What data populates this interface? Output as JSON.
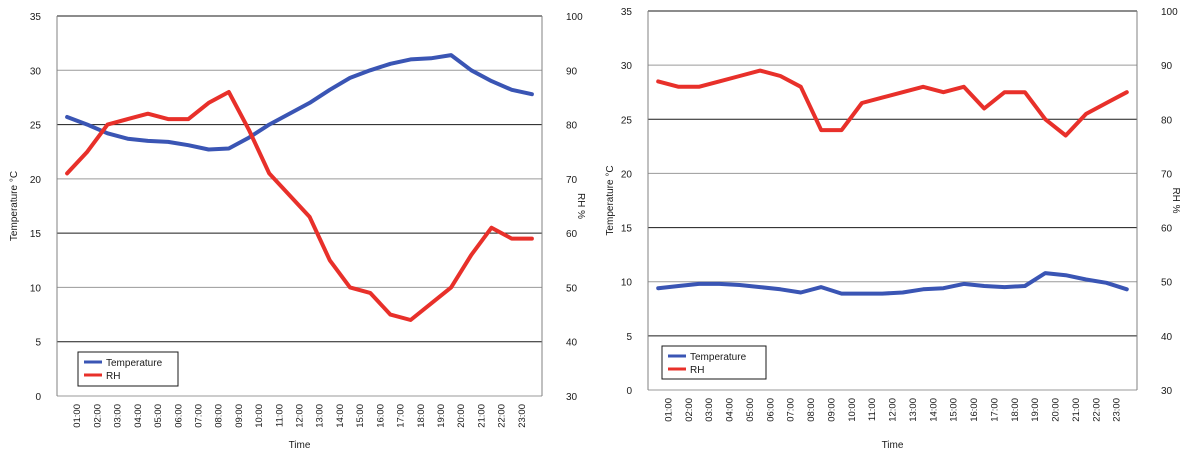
{
  "chart_data": [
    {
      "type": "line",
      "xlabel": "Time",
      "ylabel_left": "Temperature °C",
      "ylabel_right": "RH %",
      "categories": [
        "01:00",
        "02:00",
        "03:00",
        "04:00",
        "05:00",
        "06:00",
        "07:00",
        "08:00",
        "09:00",
        "10:00",
        "11:00",
        "12:00",
        "13:00",
        "14:00",
        "15:00",
        "16:00",
        "17:00",
        "18:00",
        "19:00",
        "20:00",
        "21:00",
        "22:00",
        "23:00"
      ],
      "ylim_left": [
        0,
        35
      ],
      "yticks_left": [
        "0",
        "5",
        "10",
        "15",
        "20",
        "25",
        "30",
        "35"
      ],
      "ylim_right": [
        30,
        100
      ],
      "yticks_right": [
        "30",
        "40",
        "50",
        "60",
        "70",
        "80",
        "90",
        "100"
      ],
      "grid": true,
      "legend_position": "bottom-left",
      "series": [
        {
          "name": "Temperature",
          "axis": "left",
          "color": "#3a55b4",
          "x": [
            0.5,
            1.5,
            2.5,
            3.5,
            4.5,
            5.5,
            6.5,
            7.5,
            8.5,
            9.5,
            10.5,
            11.5,
            12.5,
            13.5,
            14.5,
            15.5,
            16.5,
            17.5,
            18.5,
            19.5,
            20.5,
            21.5,
            22.5,
            23.5
          ],
          "values": [
            25.7,
            25.0,
            24.2,
            23.7,
            23.5,
            23.4,
            23.1,
            22.7,
            22.8,
            23.8,
            25.0,
            26.0,
            27.0,
            28.2,
            29.3,
            30.0,
            30.6,
            31.0,
            31.1,
            31.4,
            30.0,
            29.0,
            28.2,
            27.8
          ]
        },
        {
          "name": "RH",
          "axis": "right",
          "color": "#e8302a",
          "x": [
            0.5,
            1.5,
            2.5,
            3.5,
            4.5,
            5.5,
            6.5,
            7.5,
            8.5,
            9.5,
            10.5,
            11.5,
            12.5,
            13.5,
            14.5,
            15.5,
            16.5,
            17.5,
            18.5,
            19.5,
            20.5,
            21.5,
            22.5,
            23.5
          ],
          "values": [
            71,
            75,
            80,
            81,
            82,
            81,
            81,
            84,
            86,
            79,
            71,
            67,
            63,
            55,
            50,
            49,
            45,
            44,
            47,
            50,
            56,
            61,
            59,
            59
          ]
        }
      ]
    },
    {
      "type": "line",
      "xlabel": "Time",
      "ylabel_left": "Temperature °C",
      "ylabel_right": "RH %",
      "categories": [
        "01:00",
        "02:00",
        "03:00",
        "04:00",
        "05:00",
        "06:00",
        "07:00",
        "08:00",
        "09:00",
        "10:00",
        "11:00",
        "12:00",
        "13:00",
        "14:00",
        "15:00",
        "16:00",
        "17:00",
        "18:00",
        "19:00",
        "20:00",
        "21:00",
        "22:00",
        "23:00"
      ],
      "ylim_left": [
        0,
        35
      ],
      "yticks_left": [
        "0",
        "5",
        "10",
        "15",
        "20",
        "25",
        "30",
        "35"
      ],
      "ylim_right": [
        30,
        100
      ],
      "yticks_right": [
        "30",
        "40",
        "50",
        "60",
        "70",
        "80",
        "90",
        "100"
      ],
      "grid": true,
      "legend_position": "bottom-left",
      "series": [
        {
          "name": "Temperature",
          "axis": "left",
          "color": "#3a55b4",
          "x": [
            0.5,
            1.5,
            2.5,
            3.5,
            4.5,
            5.5,
            6.5,
            7.5,
            8.5,
            9.5,
            10.5,
            11.5,
            12.5,
            13.5,
            14.5,
            15.5,
            16.5,
            17.5,
            18.5,
            19.5,
            20.5,
            21.5,
            22.5,
            23.5
          ],
          "values": [
            9.4,
            9.6,
            9.8,
            9.8,
            9.7,
            9.5,
            9.3,
            9.0,
            9.5,
            8.9,
            8.9,
            8.9,
            9.0,
            9.3,
            9.4,
            9.8,
            9.6,
            9.5,
            9.6,
            10.8,
            10.6,
            10.2,
            9.9,
            9.3
          ]
        },
        {
          "name": "RH",
          "axis": "right",
          "color": "#e8302a",
          "x": [
            0.5,
            1.5,
            2.5,
            3.5,
            4.5,
            5.5,
            6.5,
            7.5,
            8.5,
            9.5,
            10.5,
            11.5,
            12.5,
            13.5,
            14.5,
            15.5,
            16.5,
            17.5,
            18.5,
            19.5,
            20.5,
            21.5,
            22.5,
            23.5
          ],
          "values": [
            87,
            86,
            86,
            87,
            88,
            89,
            88,
            86,
            78,
            78,
            83,
            84,
            85,
            86,
            85,
            86,
            82,
            85,
            85,
            80,
            77,
            81,
            83,
            85
          ]
        }
      ]
    }
  ]
}
